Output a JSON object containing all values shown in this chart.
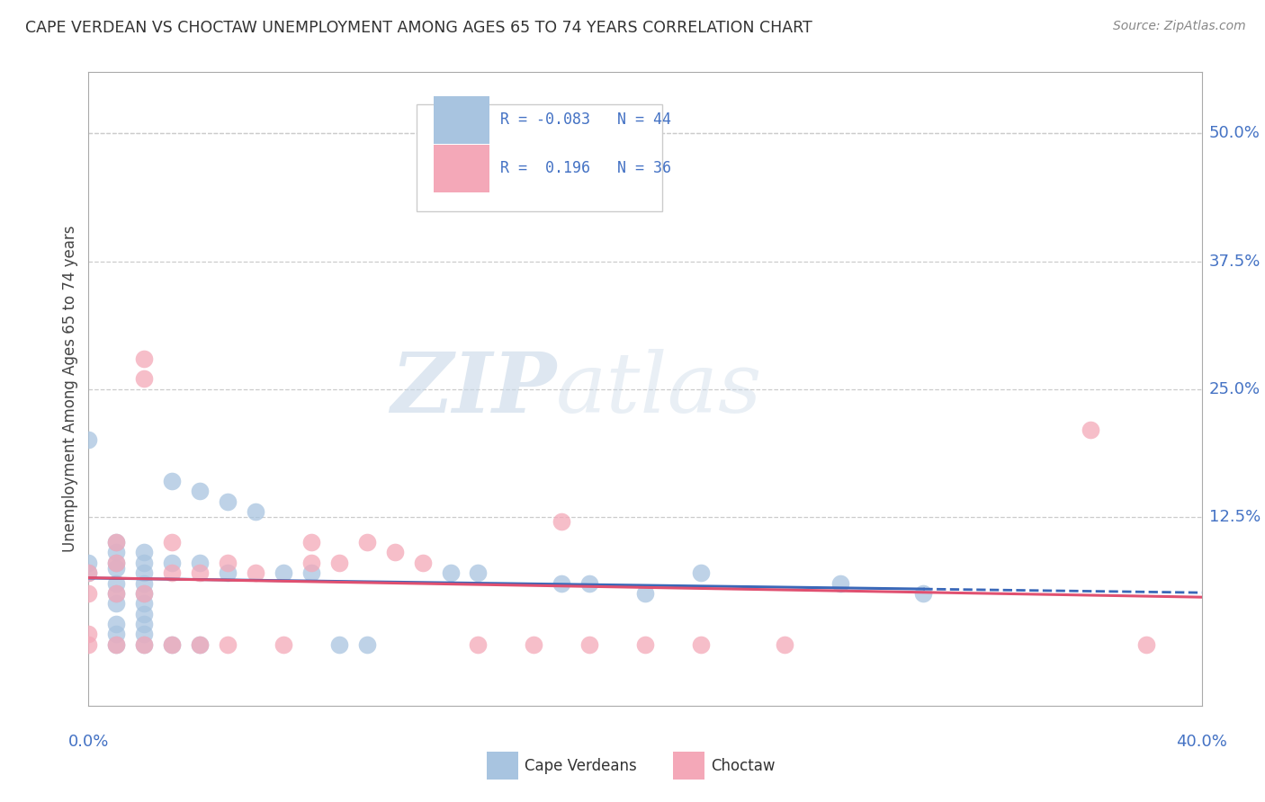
{
  "title": "CAPE VERDEAN VS CHOCTAW UNEMPLOYMENT AMONG AGES 65 TO 74 YEARS CORRELATION CHART",
  "source": "Source: ZipAtlas.com",
  "ylabel": "Unemployment Among Ages 65 to 74 years",
  "ytick_labels": [
    "50.0%",
    "37.5%",
    "25.0%",
    "12.5%"
  ],
  "ytick_vals": [
    0.5,
    0.375,
    0.25,
    0.125
  ],
  "xlim": [
    0.0,
    0.4
  ],
  "ylim": [
    -0.06,
    0.56
  ],
  "cape_verdean_R": -0.083,
  "cape_verdean_N": 44,
  "choctaw_R": 0.196,
  "choctaw_N": 36,
  "cape_verdean_color": "#a8c4e0",
  "choctaw_color": "#f4a8b8",
  "cape_verdean_edge": "#7aafd4",
  "choctaw_edge": "#e87a98",
  "legend_label_1": "Cape Verdeans",
  "legend_label_2": "Choctaw",
  "watermark_zip": "ZIP",
  "watermark_atlas": "atlas",
  "cape_verdean_dots": [
    [
      0.0,
      0.2
    ],
    [
      0.0,
      0.08
    ],
    [
      0.0,
      0.07
    ],
    [
      0.01,
      0.1
    ],
    [
      0.01,
      0.09
    ],
    [
      0.01,
      0.08
    ],
    [
      0.01,
      0.075
    ],
    [
      0.01,
      0.06
    ],
    [
      0.01,
      0.05
    ],
    [
      0.01,
      0.04
    ],
    [
      0.01,
      0.02
    ],
    [
      0.01,
      0.01
    ],
    [
      0.01,
      0.0
    ],
    [
      0.02,
      0.09
    ],
    [
      0.02,
      0.08
    ],
    [
      0.02,
      0.07
    ],
    [
      0.02,
      0.06
    ],
    [
      0.02,
      0.05
    ],
    [
      0.02,
      0.04
    ],
    [
      0.02,
      0.03
    ],
    [
      0.02,
      0.02
    ],
    [
      0.02,
      0.01
    ],
    [
      0.02,
      0.0
    ],
    [
      0.03,
      0.16
    ],
    [
      0.03,
      0.08
    ],
    [
      0.03,
      0.0
    ],
    [
      0.04,
      0.15
    ],
    [
      0.04,
      0.08
    ],
    [
      0.04,
      0.0
    ],
    [
      0.05,
      0.14
    ],
    [
      0.05,
      0.07
    ],
    [
      0.06,
      0.13
    ],
    [
      0.07,
      0.07
    ],
    [
      0.08,
      0.07
    ],
    [
      0.09,
      0.0
    ],
    [
      0.1,
      0.0
    ],
    [
      0.13,
      0.07
    ],
    [
      0.14,
      0.07
    ],
    [
      0.17,
      0.06
    ],
    [
      0.18,
      0.06
    ],
    [
      0.2,
      0.05
    ],
    [
      0.22,
      0.07
    ],
    [
      0.27,
      0.06
    ],
    [
      0.3,
      0.05
    ]
  ],
  "choctaw_dots": [
    [
      0.0,
      0.0
    ],
    [
      0.0,
      0.01
    ],
    [
      0.0,
      0.05
    ],
    [
      0.0,
      0.07
    ],
    [
      0.01,
      0.0
    ],
    [
      0.01,
      0.05
    ],
    [
      0.01,
      0.08
    ],
    [
      0.01,
      0.1
    ],
    [
      0.02,
      0.0
    ],
    [
      0.02,
      0.05
    ],
    [
      0.02,
      0.26
    ],
    [
      0.02,
      0.28
    ],
    [
      0.03,
      0.0
    ],
    [
      0.03,
      0.07
    ],
    [
      0.03,
      0.1
    ],
    [
      0.04,
      0.0
    ],
    [
      0.04,
      0.07
    ],
    [
      0.05,
      0.0
    ],
    [
      0.05,
      0.08
    ],
    [
      0.06,
      0.07
    ],
    [
      0.07,
      0.0
    ],
    [
      0.08,
      0.08
    ],
    [
      0.08,
      0.1
    ],
    [
      0.09,
      0.08
    ],
    [
      0.1,
      0.1
    ],
    [
      0.11,
      0.09
    ],
    [
      0.12,
      0.08
    ],
    [
      0.14,
      0.0
    ],
    [
      0.16,
      0.0
    ],
    [
      0.17,
      0.12
    ],
    [
      0.18,
      0.0
    ],
    [
      0.2,
      0.0
    ],
    [
      0.22,
      0.0
    ],
    [
      0.25,
      0.0
    ],
    [
      0.36,
      0.21
    ],
    [
      0.38,
      0.0
    ]
  ]
}
